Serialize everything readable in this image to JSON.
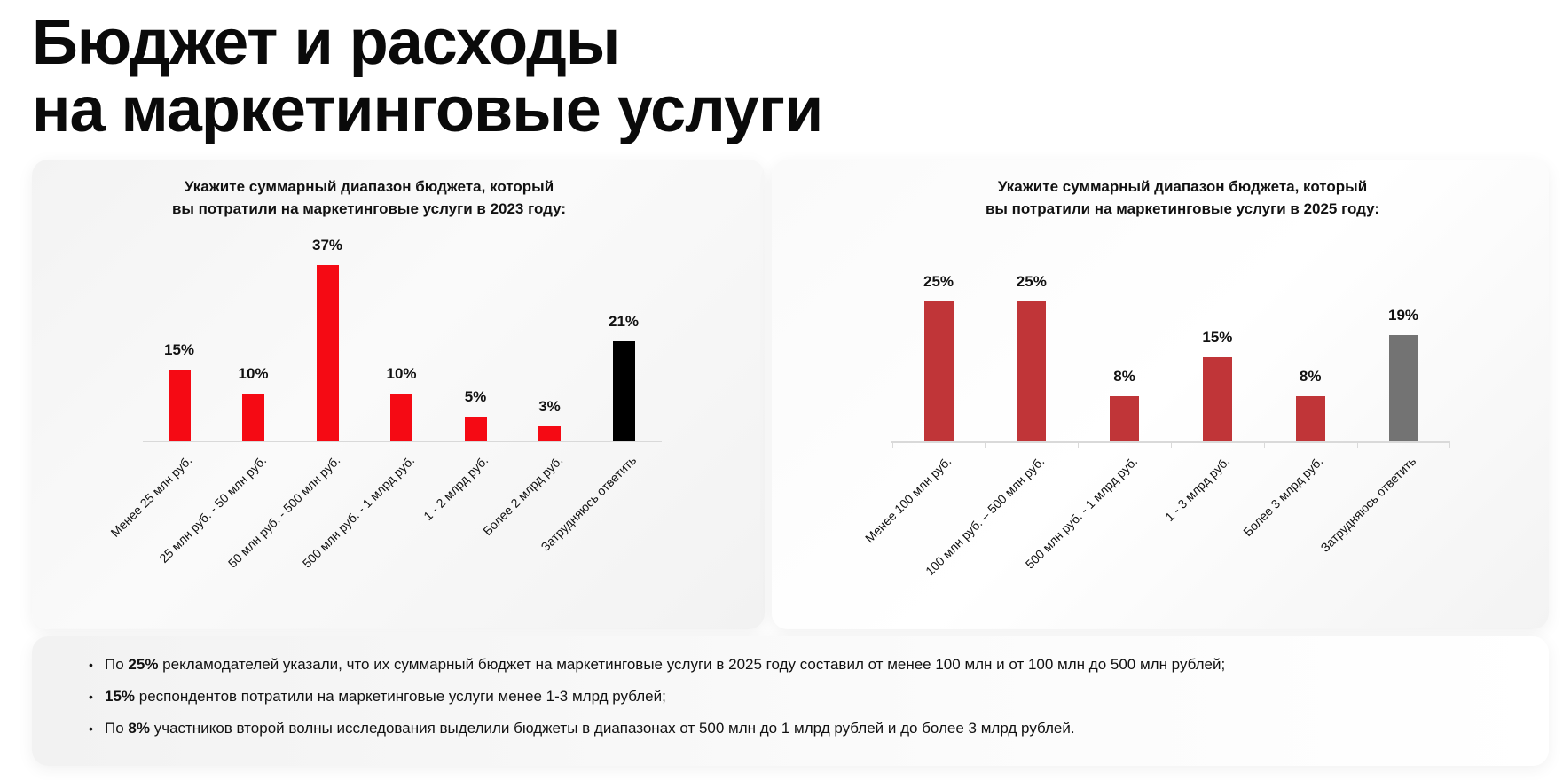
{
  "title_line1": "Бюджет и расходы",
  "title_line2": "на маркетинговые услуги",
  "chart_data": [
    {
      "type": "bar",
      "title_line1": "Укажите суммарный диапазон бюджета, который",
      "title_line2_prefix": "вы потратили на маркетинговые услуги ",
      "title_line2_bold": "в 2023 году:",
      "categories": [
        "Менее 25 млн руб.",
        "25 млн руб. - 50 млн руб.",
        "50 млн руб. - 500 млн руб.",
        "500 млн руб. - 1 млрд руб.",
        "1 - 2 млрд руб.",
        "Более 2 млрд руб.",
        "Затрудняюсь ответить"
      ],
      "values": [
        15,
        10,
        37,
        10,
        5,
        3,
        21
      ],
      "value_labels": [
        "15%",
        "10%",
        "37%",
        "10%",
        "5%",
        "3%",
        "21%"
      ],
      "colors": [
        "#f50a14",
        "#f50a14",
        "#f50a14",
        "#f50a14",
        "#f50a14",
        "#f50a14",
        "#000000"
      ],
      "unit": "%",
      "ylim": [
        0,
        37
      ],
      "grid": false
    },
    {
      "type": "bar",
      "title_line1": "Укажите суммарный диапазон бюджета, который",
      "title_line2_prefix": "вы потратили на маркетинговые услуги ",
      "title_line2_bold": "в 2025 году:",
      "categories": [
        "Менее 100 млн руб.",
        "100 млн руб. – 500 млн руб.",
        "500 млн руб. - 1 млрд руб.",
        "1 - 3 млрд руб.",
        "Более 3 млрд руб.",
        "Затрудняюсь ответить"
      ],
      "values": [
        25,
        25,
        8,
        15,
        8,
        19
      ],
      "value_labels": [
        "25%",
        "25%",
        "8%",
        "15%",
        "8%",
        "19%"
      ],
      "colors": [
        "#c03538",
        "#c03538",
        "#c03538",
        "#c03538",
        "#c03538",
        "#737373"
      ],
      "unit": "%",
      "ylim": [
        0,
        25
      ],
      "grid": false
    }
  ],
  "bullets": [
    {
      "pre": "По ",
      "bold": "25%",
      "post": " рекламодателей указали, что их суммарный бюджет на маркетинговые услуги в 2025 году составил от менее 100 млн  и от 100 млн до 500 млн рублей;"
    },
    {
      "pre": "",
      "bold": "15%",
      "post": " респондентов потратили на маркетинговые услуги менее 1-3 млрд рублей;"
    },
    {
      "pre": "По ",
      "bold": "8%",
      "post": " участников второй волны исследования выделили бюджеты в диапазонах от 500 млн до 1 млрд рублей и до более 3 млрд рублей."
    }
  ]
}
